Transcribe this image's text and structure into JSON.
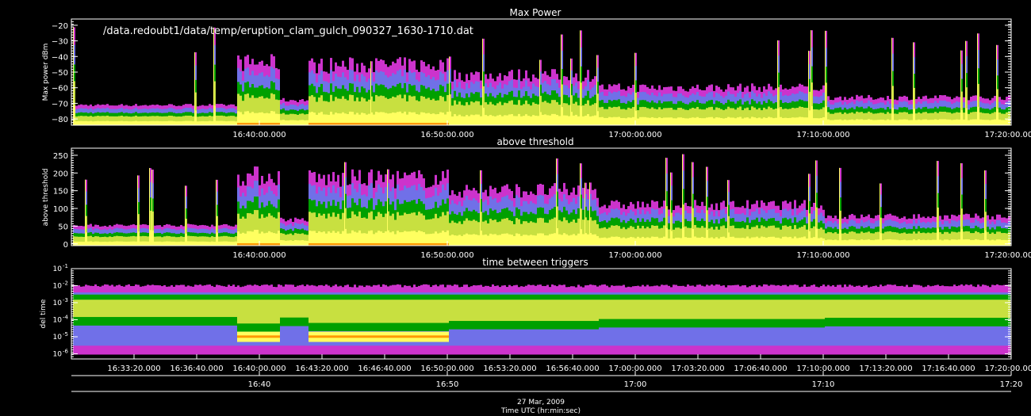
{
  "file_label": "/data.redoubt1/data/temp/eruption_clam_gulch_090327_1630-1710.dat",
  "date_label": "27 Mar, 2009",
  "xlabel": "Time UTC (hr:min:sec)",
  "colors": {
    "background": "#000000",
    "axes": "#ffffff",
    "density": [
      "#cc33cc",
      "#7070e8",
      "#00a000",
      "#c8e040",
      "#ffff60",
      "#ff9900",
      "#ff2020"
    ]
  },
  "chart_data": [
    {
      "type": "heatmap",
      "title": "Max Power",
      "ylabel": "Max power dBm",
      "ylim": [
        -84,
        -16
      ],
      "yticks": [
        -80,
        -70,
        -60,
        -50,
        -40,
        -30,
        -20
      ],
      "xlim_minutes": [
        50,
        100
      ],
      "xticks": [
        {
          "t": 60,
          "label": "16:40:00.000"
        },
        {
          "t": 70,
          "label": "16:50:00.000"
        },
        {
          "t": 80,
          "label": "17:00:00.000"
        },
        {
          "t": 90,
          "label": "17:10:00.000"
        },
        {
          "t": 100,
          "label": "17:20:00.000"
        }
      ]
    },
    {
      "type": "heatmap",
      "title": "above threshold",
      "ylabel": "above threshold",
      "ylim": [
        -5,
        270
      ],
      "yticks": [
        0,
        50,
        100,
        150,
        200,
        250
      ],
      "xlim_minutes": [
        50,
        100
      ],
      "xticks": [
        {
          "t": 60,
          "label": "16:40:00.000"
        },
        {
          "t": 70,
          "label": "16:50:00.000"
        },
        {
          "t": 80,
          "label": "17:00:00.000"
        },
        {
          "t": 90,
          "label": "17:10:00.000"
        },
        {
          "t": 100,
          "label": "17:20:00.000"
        }
      ]
    },
    {
      "type": "heatmap",
      "title": "time between triggers",
      "ylabel": "del time",
      "scale": "log",
      "ylim": [
        5e-07,
        0.1
      ],
      "yticks": [
        {
          "v": 0.1,
          "base": "10",
          "exp": "-1"
        },
        {
          "v": 0.01,
          "base": "10",
          "exp": "-2"
        },
        {
          "v": 0.001,
          "base": "10",
          "exp": "-3"
        },
        {
          "v": 0.0001,
          "base": "10",
          "exp": "-4"
        },
        {
          "v": 1e-05,
          "base": "10",
          "exp": "-5"
        },
        {
          "v": 1e-06,
          "base": "10",
          "exp": "-6"
        }
      ],
      "xlim_minutes": [
        50,
        100
      ],
      "xticks": [
        {
          "t": 53.333,
          "label": "16:33:20.000"
        },
        {
          "t": 56.667,
          "label": "16:36:40.000"
        },
        {
          "t": 60,
          "label": "16:40:00.000"
        },
        {
          "t": 63.333,
          "label": "16:43:20.000"
        },
        {
          "t": 66.667,
          "label": "16:46:40.000"
        },
        {
          "t": 70,
          "label": "16:50:00.000"
        },
        {
          "t": 73.333,
          "label": "16:53:20.000"
        },
        {
          "t": 76.667,
          "label": "16:56:40.000"
        },
        {
          "t": 80,
          "label": "17:00:00.000"
        },
        {
          "t": 83.333,
          "label": "17:03:20.000"
        },
        {
          "t": 86.667,
          "label": "17:06:40.000"
        },
        {
          "t": 90,
          "label": "17:10:00.000"
        },
        {
          "t": 93.333,
          "label": "17:13:20.000"
        },
        {
          "t": 96.667,
          "label": "17:16:40.000"
        },
        {
          "t": 100,
          "label": "17:20:00.000"
        }
      ],
      "xticks_secondary": [
        {
          "t": 60,
          "label": "16:40"
        },
        {
          "t": 70,
          "label": "16:50"
        },
        {
          "t": 80,
          "label": "17:00"
        },
        {
          "t": 90,
          "label": "17:10"
        },
        {
          "t": 100,
          "label": "17:20"
        }
      ]
    }
  ]
}
